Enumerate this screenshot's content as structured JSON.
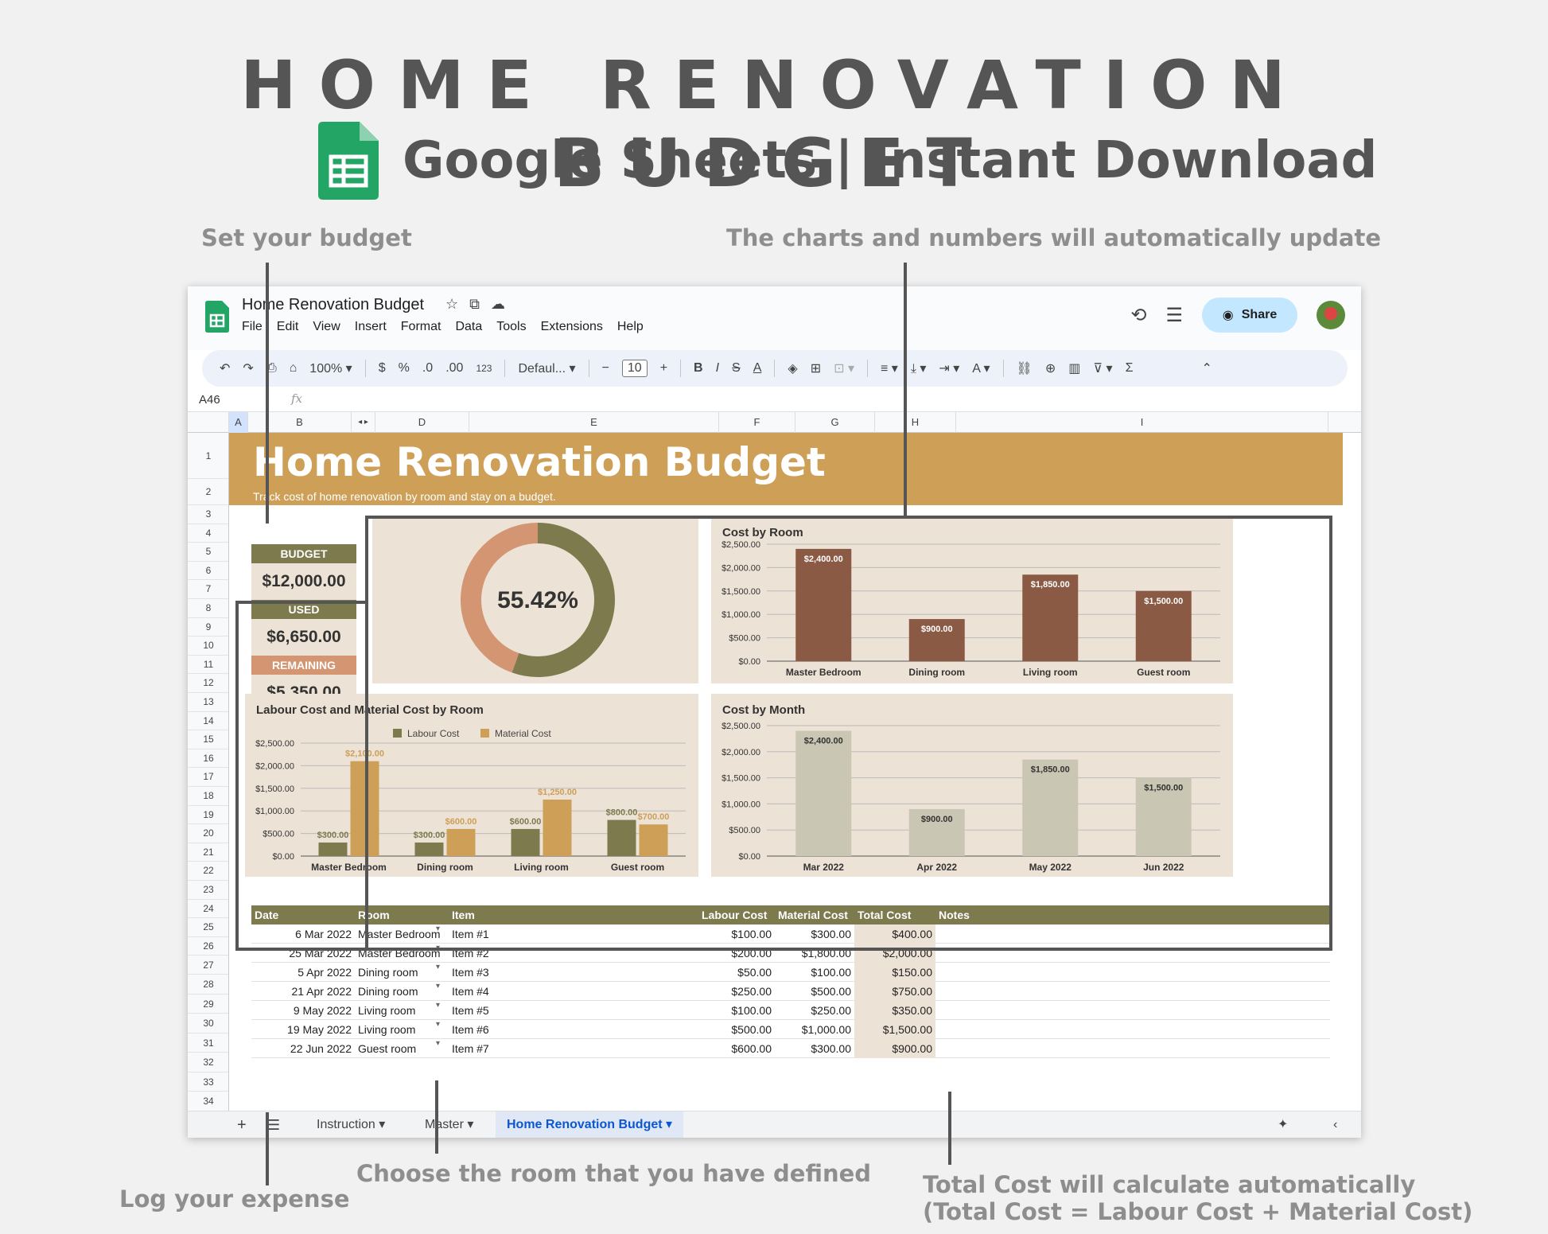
{
  "hero": {
    "title": "HOME RENOVATION BUDGET",
    "subtitle": "Google Sheets | Instant Download",
    "logo_icon": "google-sheets-icon"
  },
  "annotations": {
    "set_budget": "Set your budget",
    "charts_update": "The charts and numbers will automatically update",
    "log_expense": "Log your expense",
    "choose_room": "Choose the room that you have defined",
    "total_cost_1": "Total Cost will calculate automatically",
    "total_cost_2": "(Total Cost = Labour Cost + Material Cost)"
  },
  "app": {
    "doc_title": "Home Renovation Budget",
    "menu": [
      "File",
      "Edit",
      "View",
      "Insert",
      "Format",
      "Data",
      "Tools",
      "Extensions",
      "Help"
    ],
    "share_label": "Share",
    "toolbar": {
      "zoom": "100%",
      "currency": "$",
      "percent": "%",
      "dec_decrease": ".0",
      "dec_increase": ".00",
      "number_format": "123",
      "font": "Defaul...",
      "font_size": "10"
    },
    "cell_ref": "A46",
    "fx": "fx",
    "columns": [
      "A",
      "B",
      "",
      "D",
      "E",
      "F",
      "G",
      "H",
      "I"
    ],
    "rows": [
      "1",
      "2",
      "3",
      "4",
      "5",
      "6",
      "7",
      "8",
      "9",
      "10",
      "11",
      "12",
      "13",
      "14",
      "15",
      "16",
      "17",
      "18",
      "19",
      "20",
      "21",
      "22",
      "23",
      "24",
      "25",
      "26",
      "27",
      "28",
      "29",
      "30",
      "31",
      "32",
      "33",
      "34"
    ],
    "tabs": [
      "Instruction",
      "Master",
      "Home Renovation Budget"
    ]
  },
  "sheet": {
    "title": "Home Renovation Budget",
    "subtitle": "Track cost of home renovation by room and stay on a budget.",
    "budget": {
      "label": "BUDGET",
      "value": "$12,000.00"
    },
    "used": {
      "label": "USED",
      "value": "$6,650.00"
    },
    "remaining": {
      "label": "REMAINING",
      "value": "$5,350.00"
    },
    "percent_used": "55.42%",
    "table_headers": [
      "Date",
      "Room",
      "Item",
      "Labour Cost",
      "Material Cost",
      "Total Cost",
      "Notes"
    ],
    "table_rows": [
      [
        "6 Mar 2022",
        "Master Bedroom",
        "Item #1",
        "$100.00",
        "$300.00",
        "$400.00",
        ""
      ],
      [
        "25 Mar 2022",
        "Master Bedroom",
        "Item #2",
        "$200.00",
        "$1,800.00",
        "$2,000.00",
        ""
      ],
      [
        "5 Apr 2022",
        "Dining room",
        "Item #3",
        "$50.00",
        "$100.00",
        "$150.00",
        ""
      ],
      [
        "21 Apr 2022",
        "Dining room",
        "Item #4",
        "$250.00",
        "$500.00",
        "$750.00",
        ""
      ],
      [
        "9 May 2022",
        "Living room",
        "Item #5",
        "$100.00",
        "$250.00",
        "$350.00",
        ""
      ],
      [
        "19 May 2022",
        "Living room",
        "Item #6",
        "$500.00",
        "$1,000.00",
        "$1,500.00",
        ""
      ],
      [
        "22 Jun 2022",
        "Guest room",
        "Item #7",
        "$600.00",
        "$300.00",
        "$900.00",
        ""
      ]
    ]
  },
  "colors": {
    "banner": "#cd9f57",
    "olive": "#7d7a4e",
    "salmon": "#d39572",
    "brown": "#8b5a44",
    "grey_bar": "#c9c6b3",
    "tan": "#cd9f57",
    "panel": "#ede2d6"
  },
  "chart_data": [
    {
      "type": "pie",
      "title": "",
      "values": [
        55.42,
        44.58
      ],
      "categories": [
        "Used",
        "Remaining"
      ],
      "center_label": "55.42%"
    },
    {
      "type": "bar",
      "title": "Cost by Room",
      "categories": [
        "Master Bedroom",
        "Dining room",
        "Living room",
        "Guest room"
      ],
      "values": [
        2400,
        900,
        1850,
        1500
      ],
      "data_labels": [
        "$2,400.00",
        "$900.00",
        "$1,850.00",
        "$1,500.00"
      ],
      "ylim": [
        0,
        2500
      ],
      "yticks": [
        "$2,500.00",
        "$2,000.00",
        "$1,500.00",
        "$1,000.00",
        "$500.00",
        "$0.00"
      ],
      "grid": true
    },
    {
      "type": "bar",
      "title": "Labour Cost and Material Cost by Room",
      "categories": [
        "Master Bedroom",
        "Dining room",
        "Living room",
        "Guest room"
      ],
      "series": [
        {
          "name": "Labour Cost",
          "values": [
            300,
            300,
            600,
            800
          ],
          "data_labels": [
            "$300.00",
            "$300.00",
            "$600.00",
            "$800.00"
          ]
        },
        {
          "name": "Material Cost",
          "values": [
            2100,
            600,
            1250,
            700
          ],
          "data_labels": [
            "$2,100.00",
            "$600.00",
            "$1,250.00",
            "$700.00"
          ]
        }
      ],
      "ylim": [
        0,
        2500
      ],
      "yticks": [
        "$2,500.00",
        "$2,000.00",
        "$1,500.00",
        "$1,000.00",
        "$500.00",
        "$0.00"
      ],
      "legend": "top",
      "grid": true
    },
    {
      "type": "bar",
      "title": "Cost by Month",
      "categories": [
        "Mar 2022",
        "Apr 2022",
        "May 2022",
        "Jun 2022"
      ],
      "values": [
        2400,
        900,
        1850,
        1500
      ],
      "data_labels": [
        "$2,400.00",
        "$900.00",
        "$1,850.00",
        "$1,500.00"
      ],
      "ylim": [
        0,
        2500
      ],
      "yticks": [
        "$2,500.00",
        "$2,000.00",
        "$1,500.00",
        "$1,000.00",
        "$500.00",
        "$0.00"
      ],
      "grid": true
    }
  ]
}
